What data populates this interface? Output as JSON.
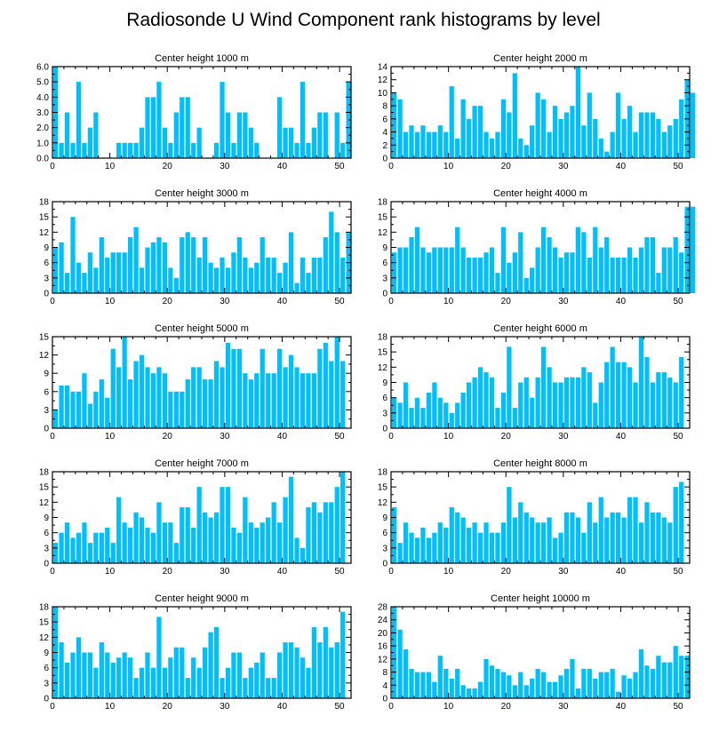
{
  "title": "Radiosonde U Wind Component rank histograms by level",
  "bar_color": "#00bfff",
  "chart_data": [
    {
      "type": "bar",
      "title": "Center height 1000 m",
      "x_ticks": [
        0,
        10,
        20,
        30,
        40,
        50
      ],
      "xlim": [
        0,
        52
      ],
      "y_ticks": [
        "0.0",
        "1.0",
        "2.0",
        "3.0",
        "4.0",
        "5.0",
        "6.0"
      ],
      "ylim": [
        0,
        6
      ],
      "values": [
        6,
        1,
        3,
        1,
        5,
        1,
        2,
        3,
        0,
        0,
        0,
        1,
        1,
        1,
        1,
        2,
        4,
        4,
        5,
        2,
        1,
        3,
        4,
        4,
        1,
        2,
        0,
        0,
        1,
        5,
        3,
        1,
        3,
        3,
        2,
        1,
        0,
        0,
        0,
        4,
        2,
        2,
        1,
        5,
        1,
        2,
        3,
        3,
        0,
        3,
        1,
        5
      ]
    },
    {
      "type": "bar",
      "title": "Center height 2000 m",
      "x_ticks": [
        0,
        10,
        20,
        30,
        40,
        50
      ],
      "xlim": [
        0,
        52
      ],
      "y_ticks": [
        "0",
        "2",
        "4",
        "6",
        "8",
        "10",
        "12",
        "14"
      ],
      "ylim": [
        0,
        14
      ],
      "values": [
        10,
        9,
        4,
        5,
        4,
        5,
        4,
        4,
        5,
        4,
        11,
        3,
        9,
        6,
        8,
        8,
        4,
        3,
        4,
        9,
        7,
        13,
        3,
        2,
        5,
        10,
        9,
        4,
        8,
        6,
        7,
        8,
        14,
        5,
        10,
        6,
        3,
        1,
        4,
        10,
        6,
        8,
        4,
        7,
        7,
        7,
        6,
        4,
        5,
        6,
        9,
        12,
        10
      ]
    },
    {
      "type": "bar",
      "title": "Center height 3000 m",
      "x_ticks": [
        0,
        10,
        20,
        30,
        40,
        50
      ],
      "xlim": [
        0,
        52
      ],
      "y_ticks": [
        "0",
        "3",
        "6",
        "9",
        "12",
        "15",
        "18"
      ],
      "ylim": [
        0,
        18
      ],
      "values": [
        9,
        10,
        4,
        15,
        6,
        4,
        8,
        5,
        11,
        7,
        8,
        8,
        8,
        11,
        13,
        5,
        9,
        10,
        11,
        10,
        5,
        3,
        11,
        12,
        11,
        7,
        11,
        6,
        5,
        7,
        5,
        8,
        11,
        7,
        5,
        6,
        11,
        7,
        7,
        4,
        6,
        12,
        2,
        7,
        4,
        7,
        7,
        11,
        16,
        12,
        7,
        12
      ]
    },
    {
      "type": "bar",
      "title": "Center height 4000 m",
      "x_ticks": [
        0,
        10,
        20,
        30,
        40,
        50
      ],
      "xlim": [
        0,
        52
      ],
      "y_ticks": [
        "0",
        "3",
        "6",
        "9",
        "12",
        "15",
        "18"
      ],
      "ylim": [
        0,
        18
      ],
      "values": [
        8,
        9,
        9,
        11,
        13,
        9,
        8,
        9,
        9,
        9,
        9,
        13,
        9,
        7,
        7,
        7,
        8,
        9,
        4,
        13,
        6,
        8,
        12,
        3,
        5,
        9,
        13,
        11,
        9,
        7,
        8,
        8,
        13,
        12,
        7,
        13,
        9,
        11,
        7,
        7,
        7,
        9,
        7,
        9,
        11,
        11,
        4,
        9,
        9,
        11,
        8,
        17,
        17
      ]
    },
    {
      "type": "bar",
      "title": "Center height 5000 m",
      "x_ticks": [
        0,
        10,
        20,
        30,
        40,
        50
      ],
      "xlim": [
        0,
        52
      ],
      "y_ticks": [
        "0",
        "3",
        "6",
        "9",
        "12",
        "15"
      ],
      "ylim": [
        0,
        15
      ],
      "values": [
        3,
        7,
        7,
        6,
        6,
        9,
        4,
        6,
        8,
        5,
        13,
        10,
        15,
        8,
        11,
        12,
        10,
        9,
        10,
        9,
        6,
        6,
        6,
        8,
        10,
        10,
        8,
        8,
        11,
        10,
        14,
        13,
        13,
        9,
        8,
        9,
        13,
        9,
        9,
        13,
        10,
        12,
        10,
        9,
        9,
        9,
        13,
        14,
        11,
        15,
        11
      ]
    },
    {
      "type": "bar",
      "title": "Center height 6000 m",
      "x_ticks": [
        0,
        10,
        20,
        30,
        40,
        50
      ],
      "xlim": [
        0,
        52
      ],
      "y_ticks": [
        "0",
        "3",
        "6",
        "9",
        "12",
        "15",
        "18"
      ],
      "ylim": [
        0,
        18
      ],
      "values": [
        6,
        5,
        9,
        4,
        6,
        4,
        7,
        9,
        6,
        5,
        3,
        5,
        7,
        9,
        10,
        12,
        11,
        10,
        4,
        7,
        16,
        4,
        9,
        10,
        6,
        10,
        16,
        12,
        9,
        9,
        10,
        10,
        10,
        12,
        11,
        5,
        9,
        13,
        16,
        13,
        13,
        12,
        9,
        18,
        14,
        9,
        11,
        11,
        10,
        9,
        14
      ]
    },
    {
      "type": "bar",
      "title": "Center height 7000 m",
      "x_ticks": [
        0,
        10,
        20,
        30,
        40,
        50
      ],
      "xlim": [
        0,
        52
      ],
      "y_ticks": [
        "0",
        "3",
        "6",
        "9",
        "12",
        "15",
        "18"
      ],
      "ylim": [
        0,
        18
      ],
      "values": [
        4,
        6,
        8,
        5,
        6,
        8,
        4,
        6,
        6,
        7,
        4,
        13,
        8,
        7,
        10,
        9,
        7,
        6,
        12,
        8,
        8,
        4,
        11,
        11,
        7,
        15,
        10,
        9,
        10,
        15,
        15,
        7,
        6,
        13,
        8,
        7,
        8,
        9,
        12,
        8,
        13,
        17,
        5,
        3,
        11,
        12,
        10,
        12,
        12,
        15,
        18
      ]
    },
    {
      "type": "bar",
      "title": "Center height 8000 m",
      "x_ticks": [
        0,
        10,
        20,
        30,
        40,
        50
      ],
      "xlim": [
        0,
        52
      ],
      "y_ticks": [
        "0",
        "3",
        "6",
        "9",
        "12",
        "15",
        "18"
      ],
      "ylim": [
        0,
        18
      ],
      "values": [
        11,
        4,
        8,
        6,
        5,
        7,
        5,
        6,
        8,
        7,
        11,
        10,
        9,
        7,
        8,
        6,
        8,
        6,
        6,
        8,
        15,
        9,
        12,
        10,
        9,
        8,
        8,
        9,
        5,
        6,
        10,
        10,
        9,
        6,
        12,
        8,
        13,
        9,
        10,
        10,
        9,
        13,
        13,
        8,
        12,
        10,
        10,
        9,
        8,
        15,
        16
      ]
    },
    {
      "type": "bar",
      "title": "Center height 9000 m",
      "x_ticks": [
        0,
        10,
        20,
        30,
        40,
        50
      ],
      "xlim": [
        0,
        52
      ],
      "y_ticks": [
        "0",
        "3",
        "6",
        "9",
        "12",
        "15",
        "18"
      ],
      "ylim": [
        0,
        18
      ],
      "values": [
        18,
        11,
        7,
        9,
        12,
        9,
        9,
        6,
        11,
        9,
        7,
        8,
        9,
        8,
        4,
        6,
        9,
        6,
        16,
        6,
        8,
        10,
        10,
        4,
        8,
        6,
        10,
        13,
        14,
        4,
        6,
        9,
        9,
        4,
        6,
        7,
        9,
        4,
        4,
        9,
        11,
        11,
        10,
        8,
        6,
        14,
        11,
        14,
        10,
        11,
        17
      ]
    },
    {
      "type": "bar",
      "title": "Center height 10000 m",
      "x_ticks": [
        0,
        10,
        20,
        30,
        40,
        50
      ],
      "xlim": [
        0,
        52
      ],
      "y_ticks": [
        "0",
        "4",
        "8",
        "12",
        "16",
        "20",
        "24",
        "28"
      ],
      "ylim": [
        0,
        28
      ],
      "values": [
        28,
        21,
        15,
        9,
        8,
        8,
        8,
        5,
        13,
        9,
        6,
        9,
        4,
        3,
        3,
        5,
        12,
        10,
        9,
        8,
        7,
        4,
        8,
        4,
        6,
        9,
        8,
        5,
        5,
        7,
        9,
        12,
        3,
        9,
        9,
        6,
        8,
        8,
        9,
        2,
        7,
        6,
        8,
        15,
        10,
        9,
        13,
        11,
        11,
        16,
        13,
        13
      ]
    }
  ]
}
